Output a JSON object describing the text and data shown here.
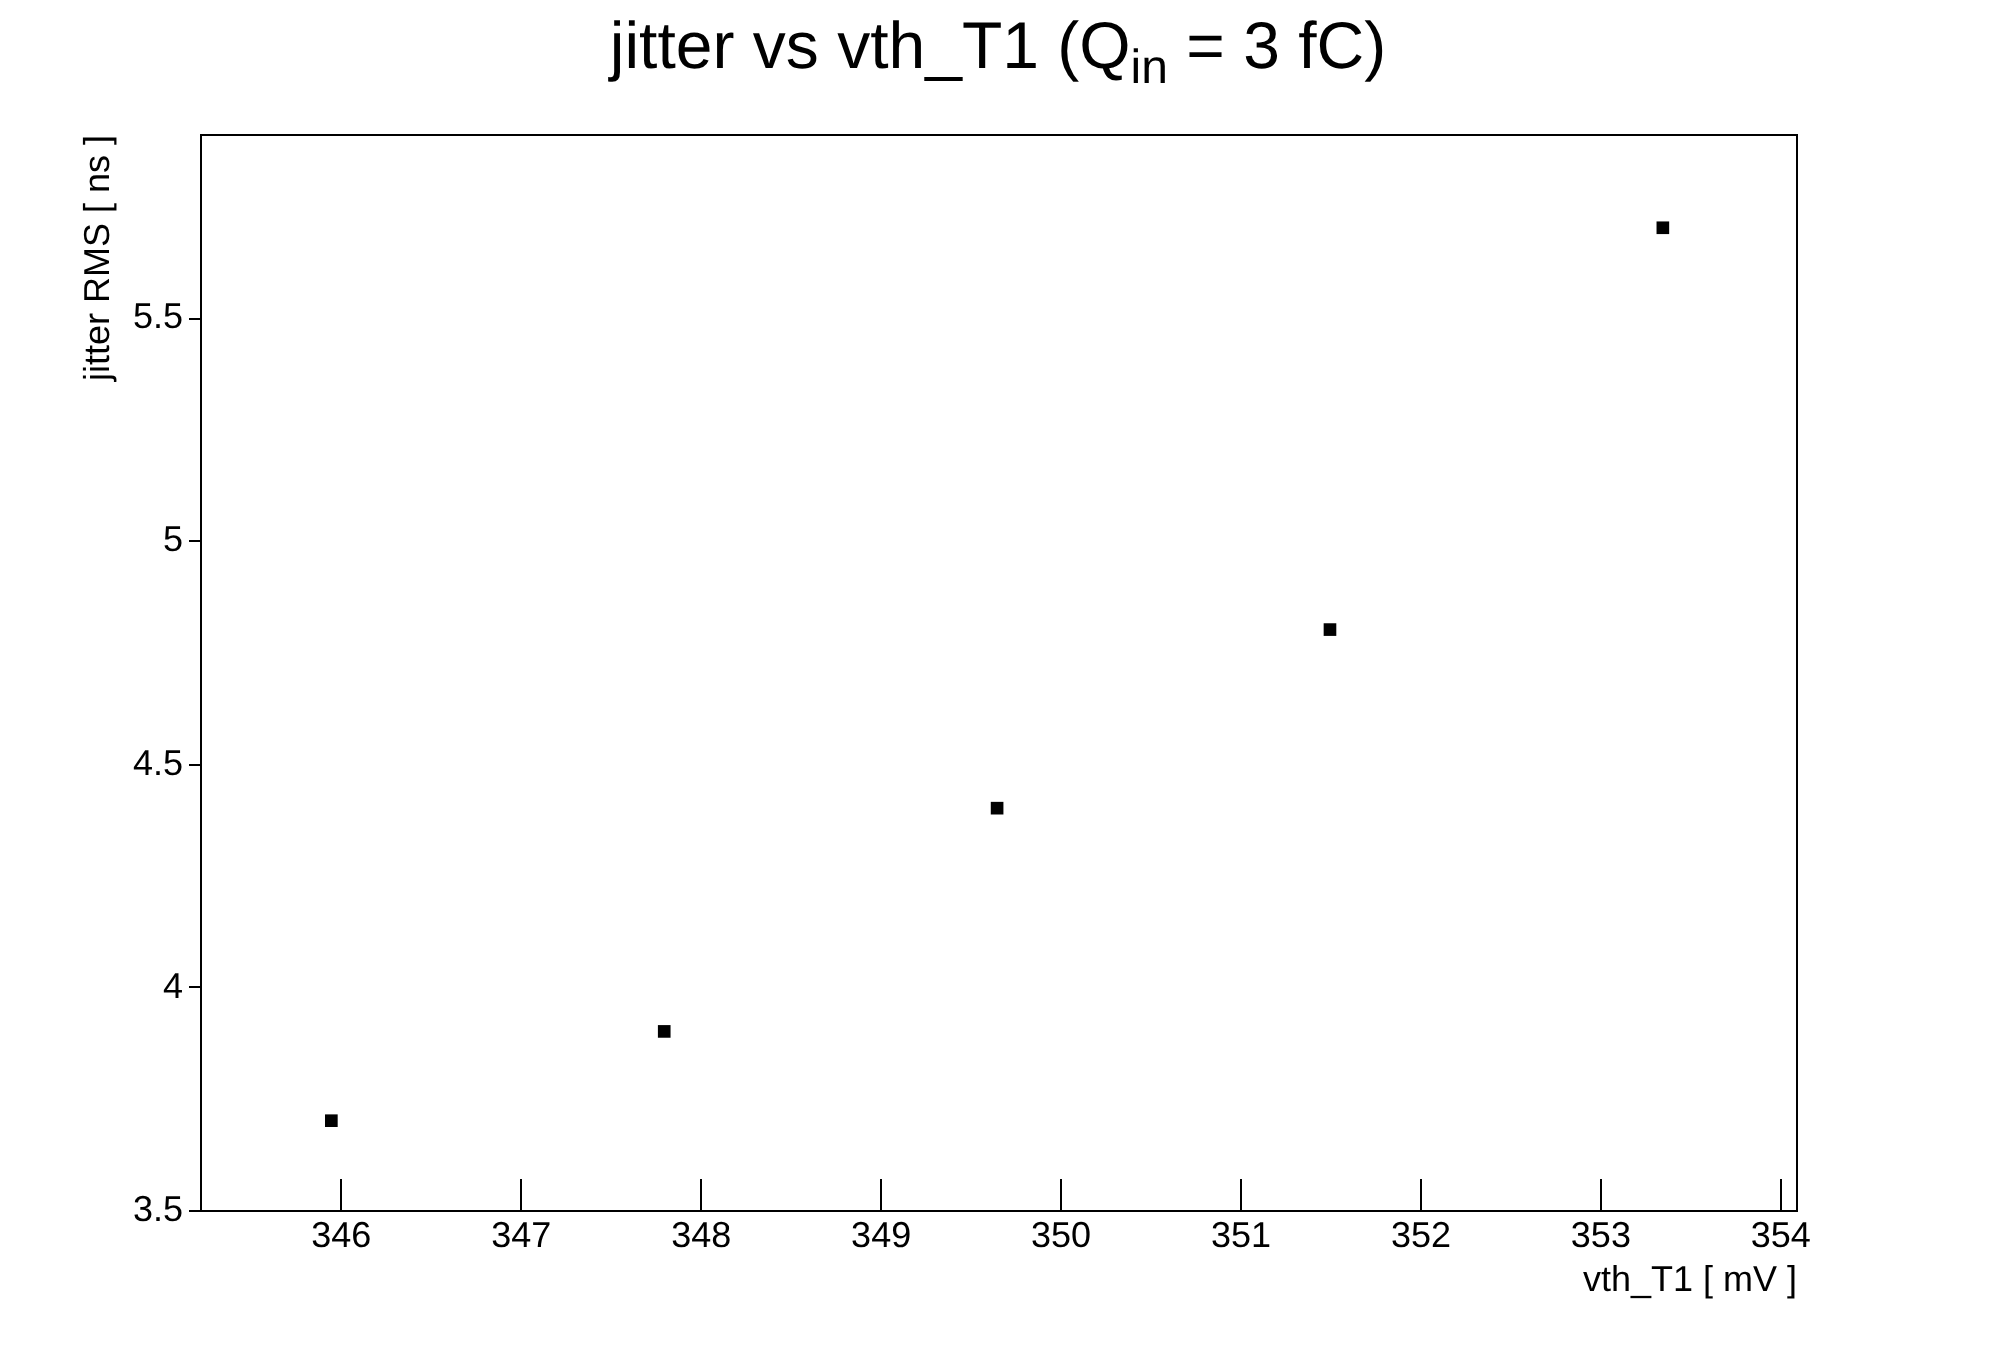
{
  "chart_data": {
    "type": "scatter",
    "title": "jitter vs vth_T1 (Q$_{in}$ = 3 fC)",
    "xlabel": "vth_T1 [ mV ]",
    "ylabel": "jitter RMS [ ns ]",
    "x": [
      345.95,
      347.8,
      349.65,
      351.5,
      353.35
    ],
    "series": [
      {
        "color": "#000000",
        "values": [
          3.7,
          3.9,
          4.4,
          4.8,
          5.7
        ]
      }
    ],
    "xlim": [
      345.22,
      354.09
    ],
    "xticks": [
      346,
      347,
      348,
      349,
      350,
      351,
      352,
      353,
      354
    ],
    "ylim": [
      3.5,
      5.91
    ],
    "yticks": [
      3.5,
      4,
      4.5,
      5,
      5.5
    ],
    "marker": "square",
    "grid": false,
    "legend": false
  }
}
